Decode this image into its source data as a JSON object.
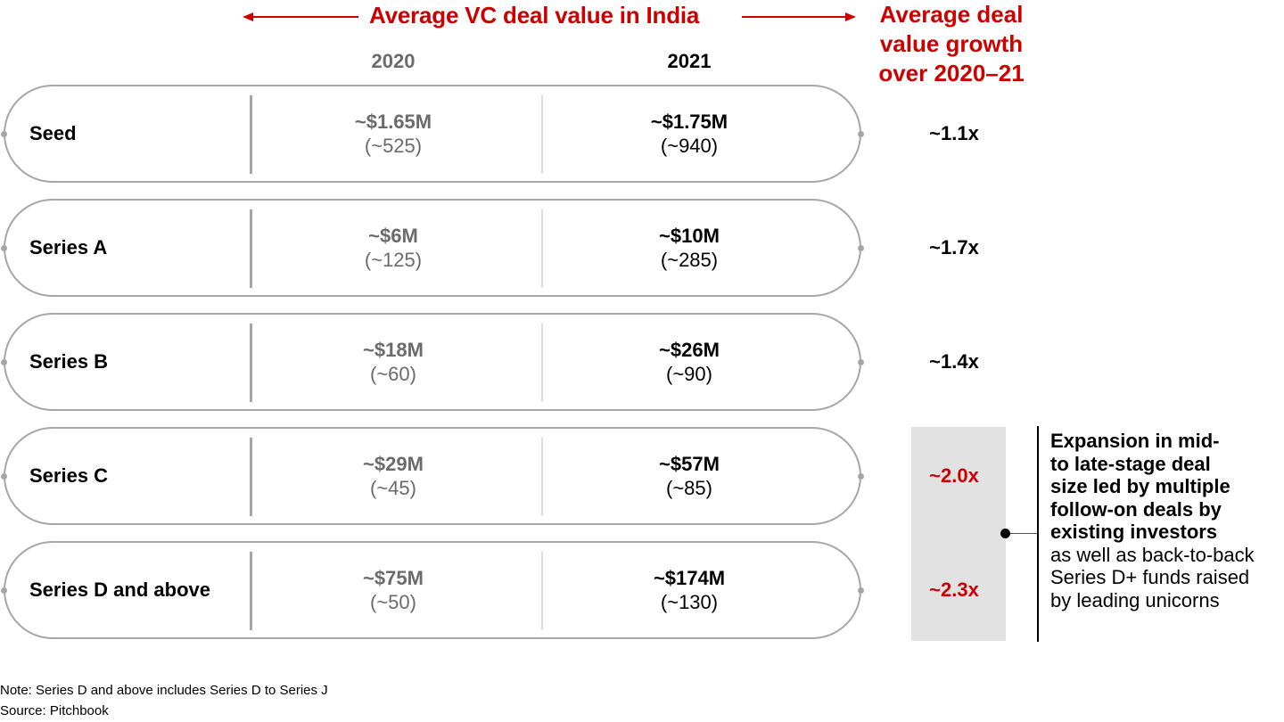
{
  "chart_data": {
    "type": "table",
    "title": "Average VC deal value in India",
    "growth_header": "Average deal value growth over 2020–21",
    "columns": [
      "2020",
      "2021"
    ],
    "rows": [
      {
        "stage": "Seed",
        "v2020": "~$1.65M",
        "n2020": "(~525)",
        "v2021": "~$1.75M",
        "n2021": "(~940)",
        "growth": "~1.1x",
        "highlight": false
      },
      {
        "stage": "Series A",
        "v2020": "~$6M",
        "n2020": "(~125)",
        "v2021": "~$10M",
        "n2021": "(~285)",
        "growth": "~1.7x",
        "highlight": false
      },
      {
        "stage": "Series B",
        "v2020": "~$18M",
        "n2020": "(~60)",
        "v2021": "~$26M",
        "n2021": "(~90)",
        "growth": "~1.4x",
        "highlight": false
      },
      {
        "stage": "Series C",
        "v2020": "~$29M",
        "n2020": "(~45)",
        "v2021": "~$57M",
        "n2021": "(~85)",
        "growth": "~2.0x",
        "highlight": true
      },
      {
        "stage": "Series D and above",
        "v2020": "~$75M",
        "n2020": "(~50)",
        "v2021": "~$174M",
        "n2021": "(~130)",
        "growth": "~2.3x",
        "highlight": true
      }
    ],
    "values_2020_musd": [
      1.65,
      6,
      18,
      29,
      75
    ],
    "values_2021_musd": [
      1.75,
      10,
      26,
      57,
      174
    ],
    "deal_counts_2020": [
      525,
      125,
      60,
      45,
      50
    ],
    "deal_counts_2021": [
      940,
      285,
      90,
      85,
      130
    ],
    "growth_multiples": [
      1.1,
      1.7,
      1.4,
      2.0,
      2.3
    ]
  },
  "header": {
    "title": "Average VC deal value in India",
    "growth_title_lines": [
      "Average deal",
      "value growth",
      "over 2020–21"
    ],
    "year_2020": "2020",
    "year_2021": "2021"
  },
  "annotation": {
    "bold": "Expansion in mid-to late-stage deal size led by multiple follow-on deals by existing investors",
    "bold_lines": [
      "Expansion in mid-",
      "to late-stage deal",
      "size led by multiple",
      "follow-on deals by",
      "existing investors"
    ],
    "normal_lines": [
      "as well as back-to-back",
      "Series D+ funds raised",
      "by leading unicorns"
    ]
  },
  "footer": {
    "note": "Note: Series D and above includes Series D to Series J",
    "source": "Source: Pitchbook"
  },
  "colors": {
    "accent_red": "#cc0000",
    "muted_gray": "#6b6b6b",
    "border_gray": "#a6a6a6",
    "highlight_bg": "#e2e2e2"
  }
}
